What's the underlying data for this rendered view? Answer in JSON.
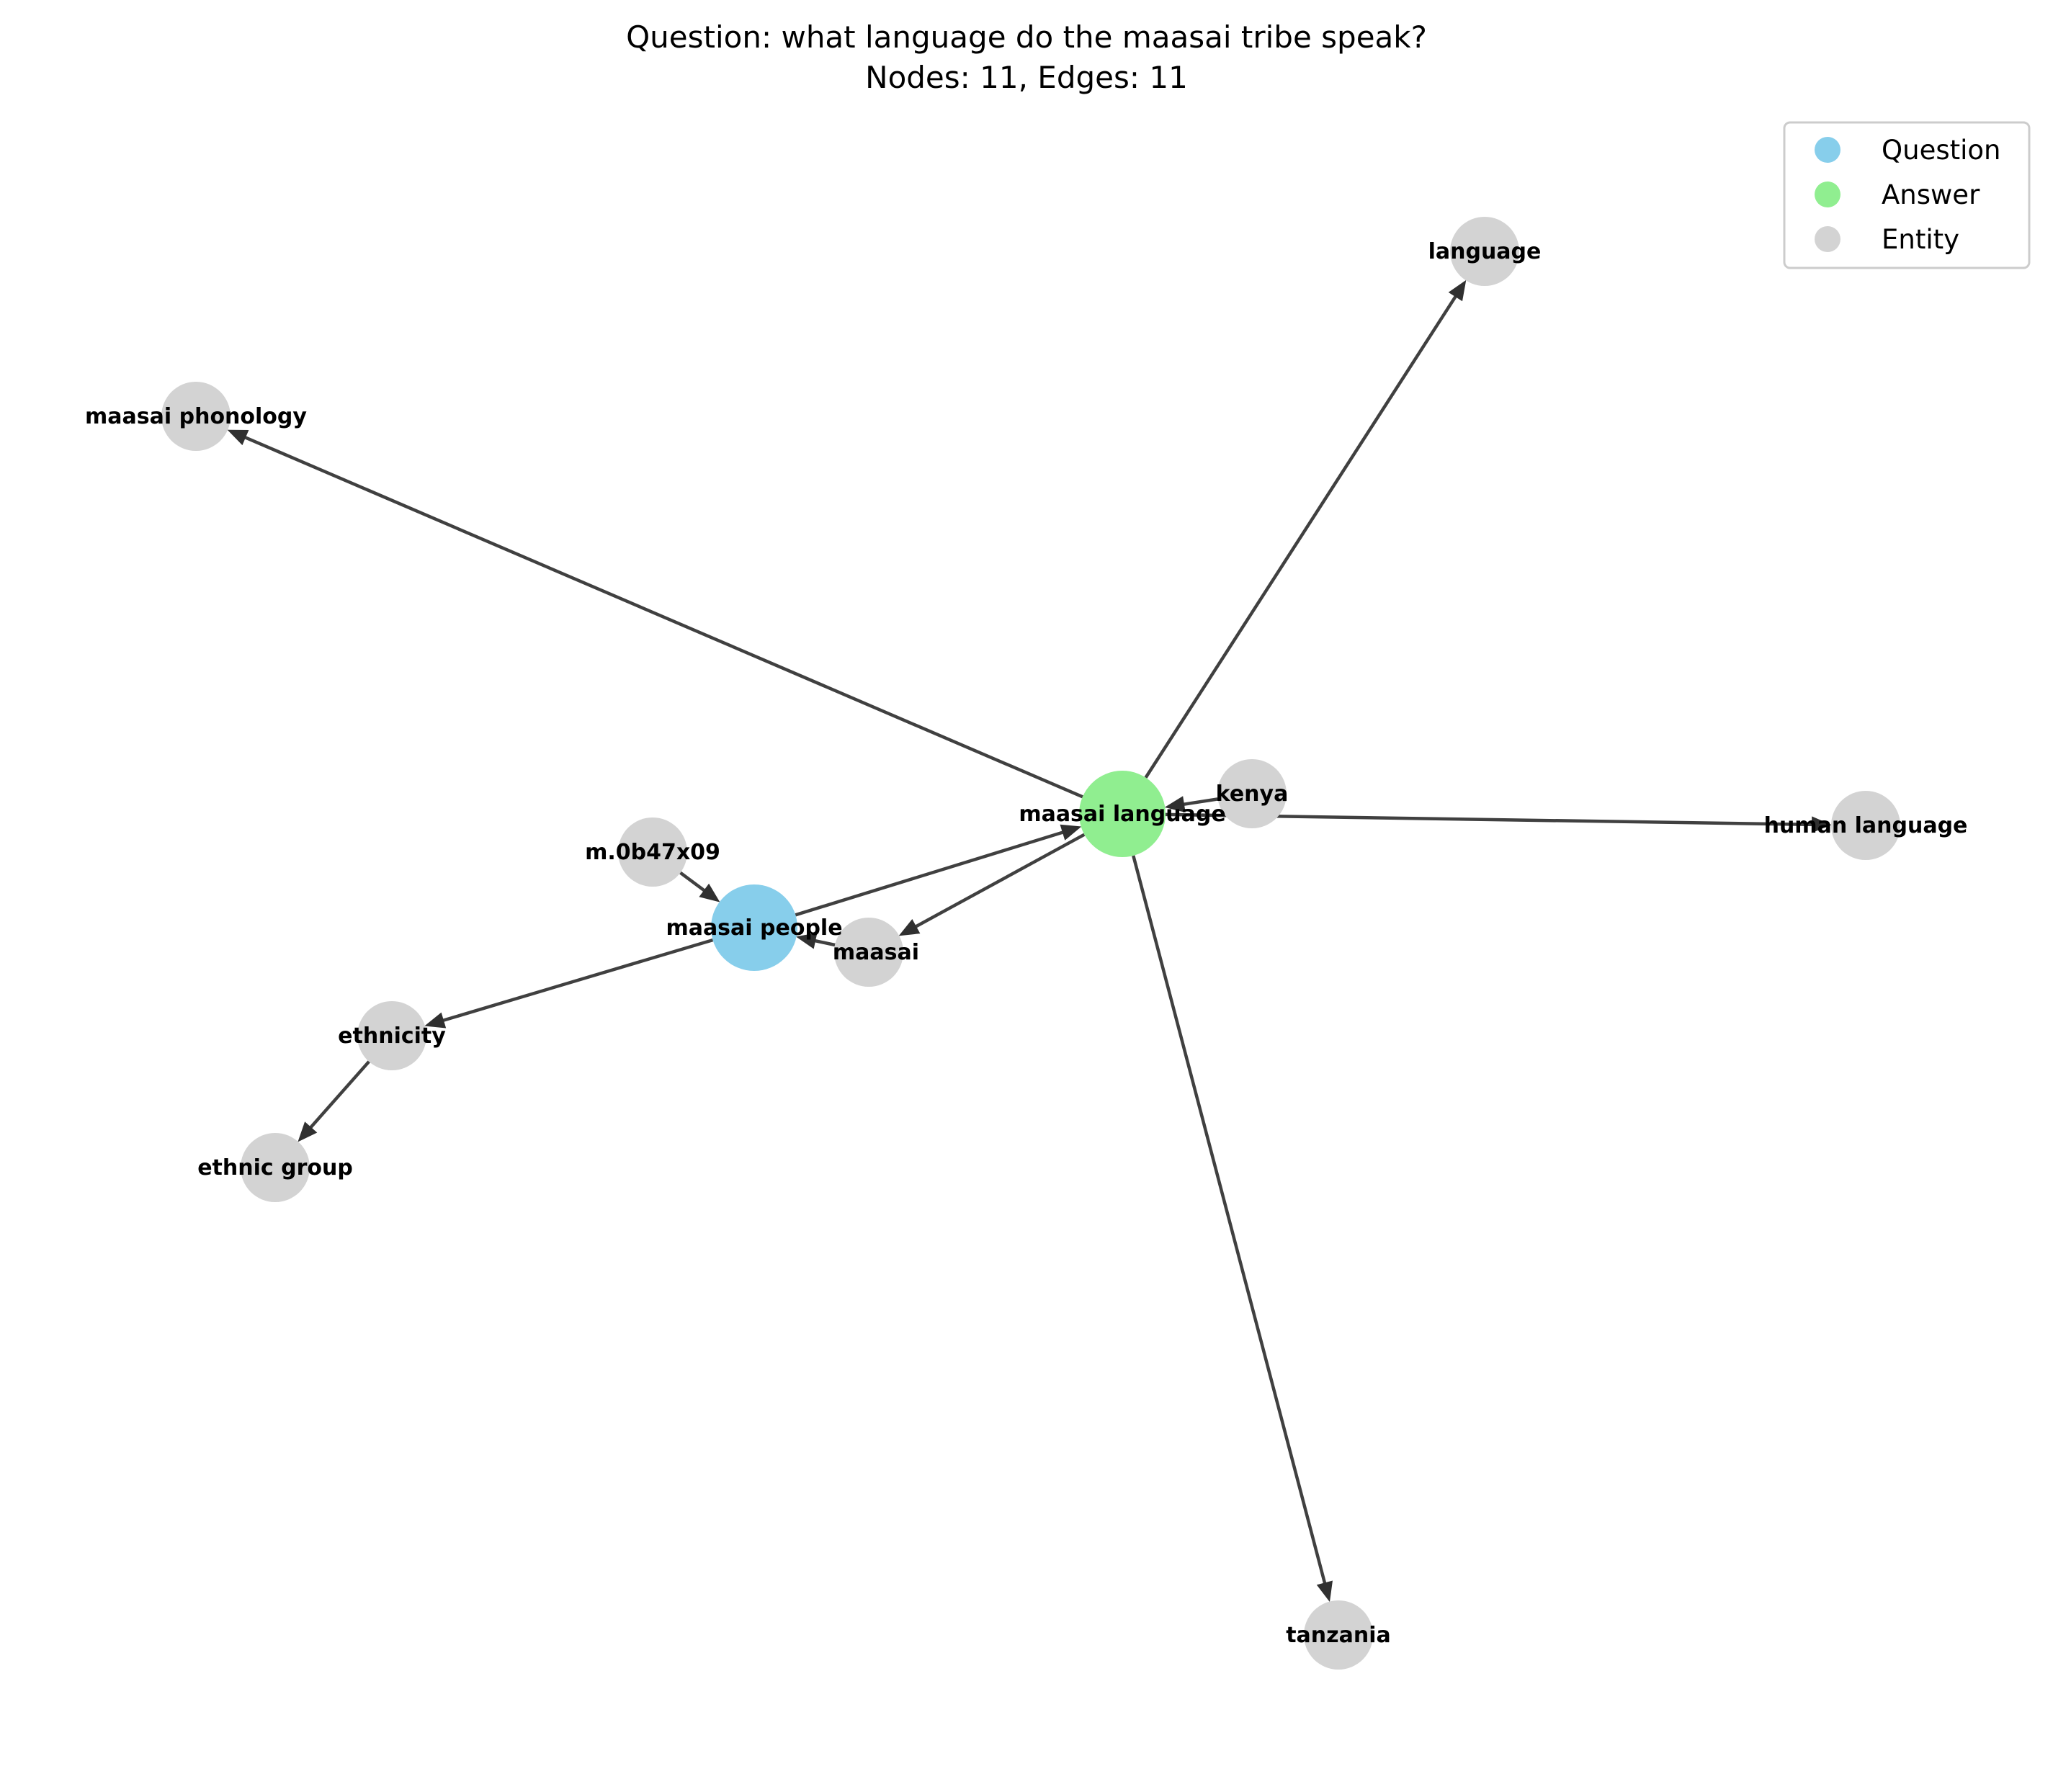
{
  "title": {
    "line1": "Question: what language do the maasai tribe speak?",
    "line2": "Nodes: 11, Edges: 11"
  },
  "legend": {
    "placement": "top-right",
    "items": [
      {
        "label": "Question",
        "color": "#87ceeb"
      },
      {
        "label": "Answer",
        "color": "#90ee90"
      },
      {
        "label": "Entity",
        "color": "#d3d3d3"
      }
    ]
  },
  "graph": {
    "nodes": [
      {
        "id": "maasai_language",
        "label": "maasai language",
        "role": "Answer",
        "color": "#90ee90"
      },
      {
        "id": "maasai_people",
        "label": "maasai people",
        "role": "Question",
        "color": "#87ceeb"
      },
      {
        "id": "language",
        "label": "language",
        "role": "Entity",
        "color": "#d3d3d3"
      },
      {
        "id": "maasai_phonology",
        "label": "maasai phonology",
        "role": "Entity",
        "color": "#d3d3d3"
      },
      {
        "id": "kenya",
        "label": "kenya",
        "role": "Entity",
        "color": "#d3d3d3"
      },
      {
        "id": "human_language",
        "label": "human language",
        "role": "Entity",
        "color": "#d3d3d3"
      },
      {
        "id": "m0b47x09",
        "label": "m.0b47x09",
        "role": "Entity",
        "color": "#d3d3d3"
      },
      {
        "id": "maasai",
        "label": "maasai",
        "role": "Entity",
        "color": "#d3d3d3"
      },
      {
        "id": "ethnicity",
        "label": "ethnicity",
        "role": "Entity",
        "color": "#d3d3d3"
      },
      {
        "id": "ethnic_group",
        "label": "ethnic group",
        "role": "Entity",
        "color": "#d3d3d3"
      },
      {
        "id": "tanzania",
        "label": "tanzania",
        "role": "Entity",
        "color": "#d3d3d3"
      }
    ],
    "edges": [
      {
        "from": "maasai_language",
        "to": "language"
      },
      {
        "from": "maasai_language",
        "to": "maasai_phonology"
      },
      {
        "from": "maasai_language",
        "to": "human_language"
      },
      {
        "from": "maasai_language",
        "to": "tanzania"
      },
      {
        "from": "maasai_language",
        "to": "maasai"
      },
      {
        "from": "maasai_people",
        "to": "maasai_language"
      },
      {
        "from": "kenya",
        "to": "maasai_language"
      },
      {
        "from": "m0b47x09",
        "to": "maasai_people"
      },
      {
        "from": "maasai",
        "to": "maasai_people"
      },
      {
        "from": "maasai_people",
        "to": "ethnicity"
      },
      {
        "from": "ethnicity",
        "to": "ethnic_group"
      }
    ]
  }
}
